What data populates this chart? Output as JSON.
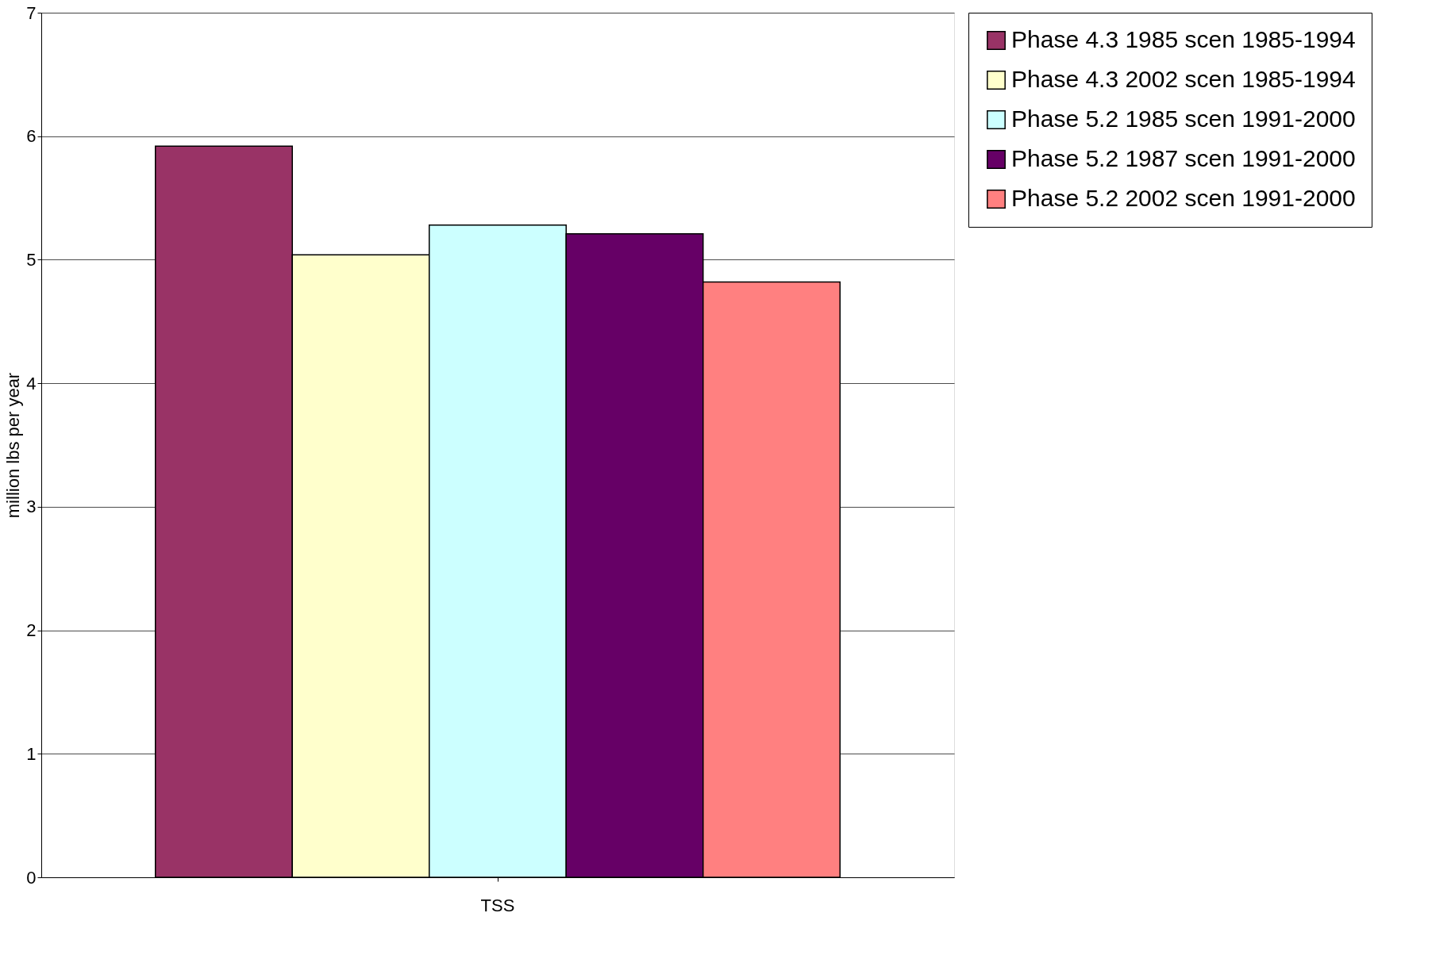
{
  "chart_data": {
    "type": "bar",
    "ylabel": "million lbs per year",
    "categories": [
      "TSS"
    ],
    "series": [
      {
        "name": "Phase 4.3 1985 scen 1985-1994",
        "color": "#993366",
        "values": [
          5.92
        ]
      },
      {
        "name": "Phase 4.3 2002 scen 1985-1994",
        "color": "#ffffcc",
        "values": [
          5.04
        ]
      },
      {
        "name": "Phase 5.2 1985 scen 1991-2000",
        "color": "#ccffff",
        "values": [
          5.28
        ]
      },
      {
        "name": "Phase 5.2 1987 scen 1991-2000",
        "color": "#660066",
        "values": [
          5.21
        ]
      },
      {
        "name": "Phase 5.2 2002 scen 1991-2000",
        "color": "#ff8080",
        "values": [
          4.82
        ]
      }
    ],
    "ylim": [
      0,
      7
    ],
    "yticks": [
      0,
      1,
      2,
      3,
      4,
      5,
      6,
      7
    ],
    "grid": "y",
    "legend": "right"
  }
}
